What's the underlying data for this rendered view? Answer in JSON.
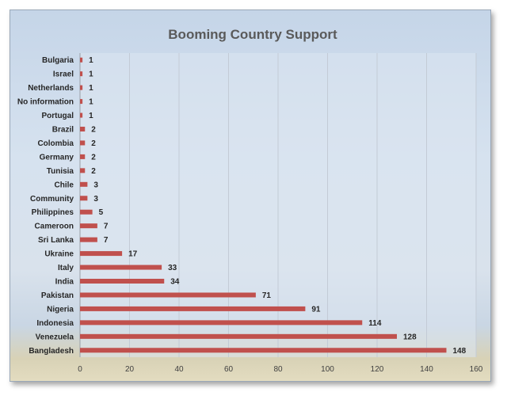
{
  "chart_data": {
    "type": "bar",
    "orientation": "horizontal",
    "title": "Booming Country Support",
    "xlabel": "",
    "ylabel": "",
    "xlim": [
      0,
      160
    ],
    "x_ticks": [
      0,
      20,
      40,
      60,
      80,
      100,
      120,
      140,
      160
    ],
    "grid": true,
    "legend": "none",
    "bar_color": "#c0504d",
    "categories": [
      "Bangladesh",
      "Venezuela",
      "Indonesia",
      "Nigeria",
      "Pakistan",
      "India",
      "Italy",
      "Ukraine",
      "Sri Lanka",
      "Cameroon",
      "Philippines",
      "Community",
      "Chile",
      "Tunisia",
      "Germany",
      "Colombia",
      "Brazil",
      "Portugal",
      "No information",
      "Netherlands",
      "Israel",
      "Bulgaria"
    ],
    "values": [
      148,
      128,
      114,
      91,
      71,
      34,
      33,
      17,
      7,
      7,
      5,
      3,
      3,
      2,
      2,
      2,
      2,
      1,
      1,
      1,
      1,
      1
    ]
  }
}
